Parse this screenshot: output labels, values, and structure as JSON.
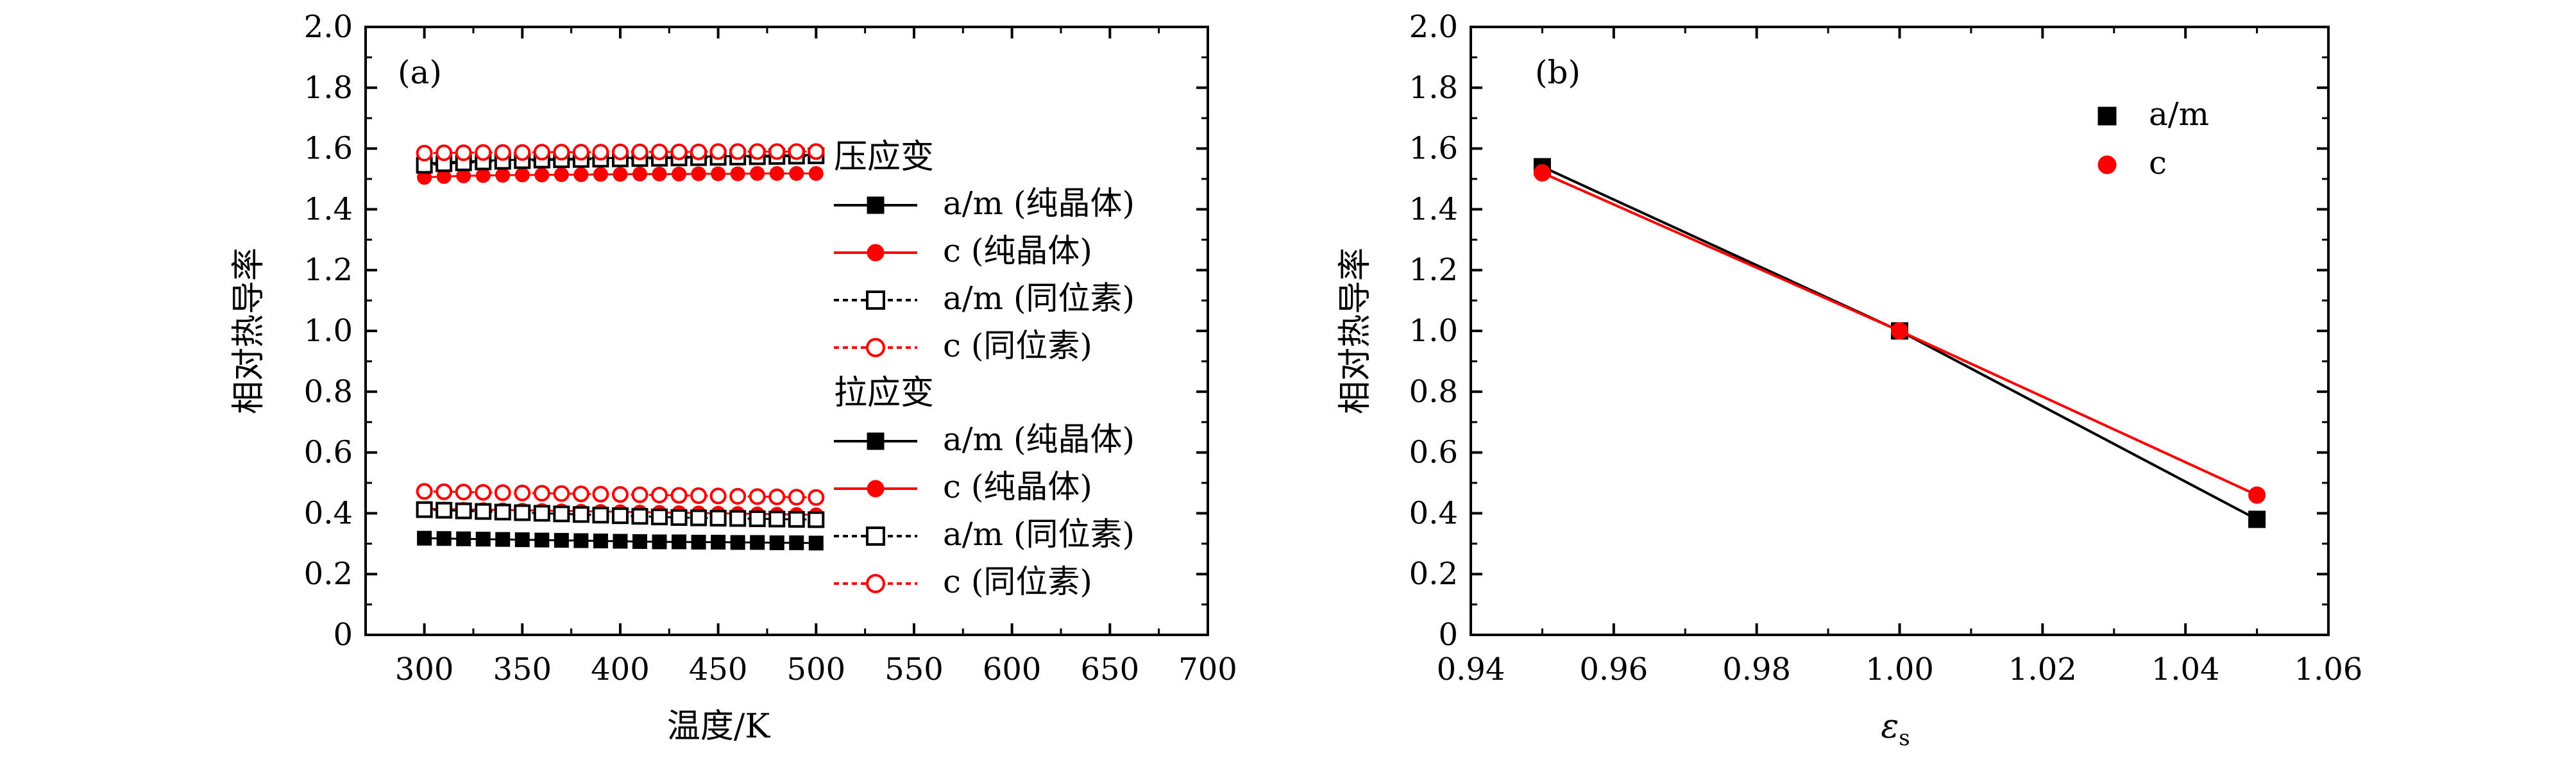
{
  "chart_data": [
    {
      "type": "scatter",
      "panel_label": "(a)",
      "xlabel": "温度/K",
      "ylabel": "相对热导率",
      "xlim": [
        270,
        700
      ],
      "ylim": [
        0,
        2.0
      ],
      "xticks": [
        "300",
        "350",
        "400",
        "450",
        "500",
        "550",
        "600",
        "650",
        "700"
      ],
      "yticks": [
        "0",
        "0.2",
        "0.4",
        "0.6",
        "0.8",
        "1.0",
        "1.2",
        "1.4",
        "1.6",
        "1.8",
        "2.0"
      ],
      "x": [
        300,
        310,
        320,
        330,
        340,
        350,
        360,
        370,
        380,
        390,
        400,
        410,
        420,
        430,
        440,
        450,
        460,
        470,
        480,
        490,
        500
      ],
      "legend_groups": [
        {
          "title": "压应变",
          "entries": [
            0,
            1,
            2,
            3
          ]
        },
        {
          "title": "拉应变",
          "entries": [
            4,
            5,
            6,
            7
          ]
        }
      ],
      "series": [
        {
          "name": "a/m (纯晶体)",
          "color": "#000000",
          "marker": "square",
          "filled": true,
          "line": "solid",
          "values": [
            1.55,
            1.555,
            1.557,
            1.56,
            1.562,
            1.563,
            1.565,
            1.566,
            1.567,
            1.568,
            1.569,
            1.57,
            1.571,
            1.572,
            1.573,
            1.574,
            1.575,
            1.576,
            1.577,
            1.578,
            1.579
          ]
        },
        {
          "name": "c (纯晶体)",
          "color": "#ff0000",
          "marker": "circle",
          "filled": true,
          "line": "solid",
          "values": [
            1.505,
            1.508,
            1.51,
            1.511,
            1.512,
            1.513,
            1.513,
            1.514,
            1.514,
            1.515,
            1.515,
            1.516,
            1.516,
            1.516,
            1.517,
            1.517,
            1.517,
            1.518,
            1.518,
            1.518,
            1.518
          ]
        },
        {
          "name": "a/m (同位素)",
          "color": "#000000",
          "marker": "square",
          "filled": false,
          "line": "dashed",
          "values": [
            1.545,
            1.55,
            1.553,
            1.556,
            1.558,
            1.56,
            1.562,
            1.563,
            1.564,
            1.565,
            1.566,
            1.567,
            1.568,
            1.569,
            1.57,
            1.571,
            1.572,
            1.573,
            1.574,
            1.575,
            1.576
          ]
        },
        {
          "name": "c (同位素)",
          "color": "#ff0000",
          "marker": "circle",
          "filled": false,
          "line": "dashed",
          "values": [
            1.585,
            1.586,
            1.586,
            1.587,
            1.587,
            1.587,
            1.588,
            1.588,
            1.588,
            1.588,
            1.589,
            1.589,
            1.589,
            1.589,
            1.589,
            1.59,
            1.59,
            1.59,
            1.59,
            1.59,
            1.59
          ]
        },
        {
          "name": "a/m (纯晶体)",
          "color": "#000000",
          "marker": "square",
          "filled": true,
          "line": "solid",
          "values": [
            0.318,
            0.317,
            0.316,
            0.315,
            0.314,
            0.313,
            0.312,
            0.311,
            0.31,
            0.309,
            0.308,
            0.307,
            0.306,
            0.306,
            0.305,
            0.305,
            0.304,
            0.304,
            0.303,
            0.303,
            0.302
          ]
        },
        {
          "name": "c (纯晶体)",
          "color": "#ff0000",
          "marker": "circle",
          "filled": true,
          "line": "solid",
          "values": [
            0.415,
            0.414,
            0.413,
            0.412,
            0.411,
            0.41,
            0.409,
            0.408,
            0.407,
            0.406,
            0.405,
            0.404,
            0.403,
            0.402,
            0.401,
            0.4,
            0.399,
            0.398,
            0.397,
            0.396,
            0.395
          ]
        },
        {
          "name": "a/m (同位素)",
          "color": "#000000",
          "marker": "square",
          "filled": false,
          "line": "dashed",
          "values": [
            0.412,
            0.41,
            0.408,
            0.406,
            0.404,
            0.402,
            0.4,
            0.398,
            0.396,
            0.394,
            0.392,
            0.39,
            0.388,
            0.386,
            0.385,
            0.384,
            0.383,
            0.382,
            0.381,
            0.38,
            0.379
          ]
        },
        {
          "name": "c (同位素)",
          "color": "#ff0000",
          "marker": "circle",
          "filled": false,
          "line": "dashed",
          "values": [
            0.472,
            0.471,
            0.47,
            0.469,
            0.468,
            0.467,
            0.466,
            0.465,
            0.464,
            0.463,
            0.462,
            0.461,
            0.46,
            0.459,
            0.458,
            0.457,
            0.456,
            0.455,
            0.454,
            0.453,
            0.452
          ]
        }
      ]
    },
    {
      "type": "line",
      "panel_label": "(b)",
      "xlabel_main": "ε",
      "xlabel_sub": "s",
      "ylabel": "相对热导率",
      "xlim": [
        0.94,
        1.06
      ],
      "ylim": [
        0,
        2.0
      ],
      "xticks": [
        "0.94",
        "0.96",
        "0.98",
        "1.00",
        "1.02",
        "1.04",
        "1.06"
      ],
      "yticks": [
        "0",
        "0.2",
        "0.4",
        "0.6",
        "0.8",
        "1.0",
        "1.2",
        "1.4",
        "1.6",
        "1.8",
        "2.0"
      ],
      "x": [
        0.95,
        1.0,
        1.05
      ],
      "series": [
        {
          "name": "a/m",
          "color": "#000000",
          "marker": "square",
          "values": [
            1.54,
            1.0,
            0.38
          ]
        },
        {
          "name": "c",
          "color": "#ff0000",
          "marker": "circle",
          "values": [
            1.52,
            1.0,
            0.46
          ]
        }
      ]
    }
  ]
}
